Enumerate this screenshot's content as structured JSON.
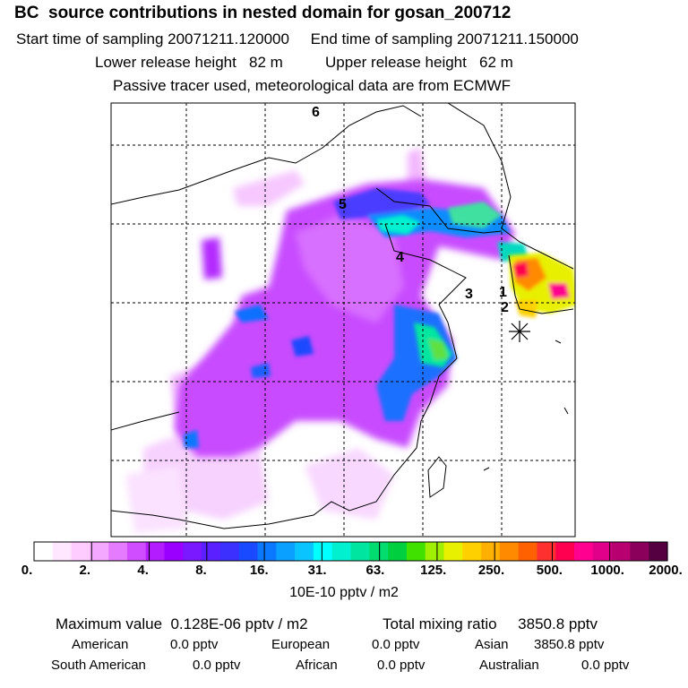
{
  "header": {
    "title": "BC  source contributions in nested domain for gosan_200712",
    "start_label": "Start time of sampling 20071211.120000",
    "end_label": "End time of sampling 20071211.150000",
    "lower_label": "Lower release height   82 m",
    "upper_label": "Upper release height   62 m",
    "tracer_note": "Passive tracer used, meteorological data are from ECMWF"
  },
  "map": {
    "point_labels": [
      "6",
      "5",
      "4",
      "3",
      "1",
      "2"
    ],
    "receptor_marker": "star"
  },
  "colorbar": {
    "tick_labels": [
      "0.",
      "2.",
      "4.",
      "8.",
      "16.",
      "31.",
      "63.",
      "125.",
      "250.",
      "500.",
      "1000.",
      "2000."
    ],
    "units": "10E-10 pptv / m2",
    "colors": [
      "#ffffff",
      "#ffe8ff",
      "#ffccff",
      "#f5a8ff",
      "#e57cff",
      "#d04cff",
      "#b21cff",
      "#9a00ff",
      "#7a18ff",
      "#5a20ff",
      "#3c30ff",
      "#1a4aff",
      "#0a78ff",
      "#0aa0ff",
      "#0ac4ff",
      "#00ffff",
      "#00f0d0",
      "#00e6a0",
      "#00dc70",
      "#00d040",
      "#40e000",
      "#a0ee00",
      "#e8f000",
      "#ffd000",
      "#ffb000",
      "#ff8a00",
      "#ff6000",
      "#ff3030",
      "#ff0050",
      "#ff0090",
      "#e0008a",
      "#b80070",
      "#8a005a",
      "#550040"
    ]
  },
  "stats": {
    "max_value": "Maximum value  0.128E-06 pptv / m2",
    "total_mixing": "Total mixing ratio     3850.8 pptv",
    "regions": [
      {
        "name": "American",
        "value": "0.0 pptv"
      },
      {
        "name": "European",
        "value": "0.0 pptv"
      },
      {
        "name": "Asian",
        "value": "3850.8 pptv"
      },
      {
        "name": "South American",
        "value": "0.0 pptv"
      },
      {
        "name": "African",
        "value": "0.0 pptv"
      },
      {
        "name": "Australian",
        "value": "0.0 pptv"
      }
    ]
  }
}
